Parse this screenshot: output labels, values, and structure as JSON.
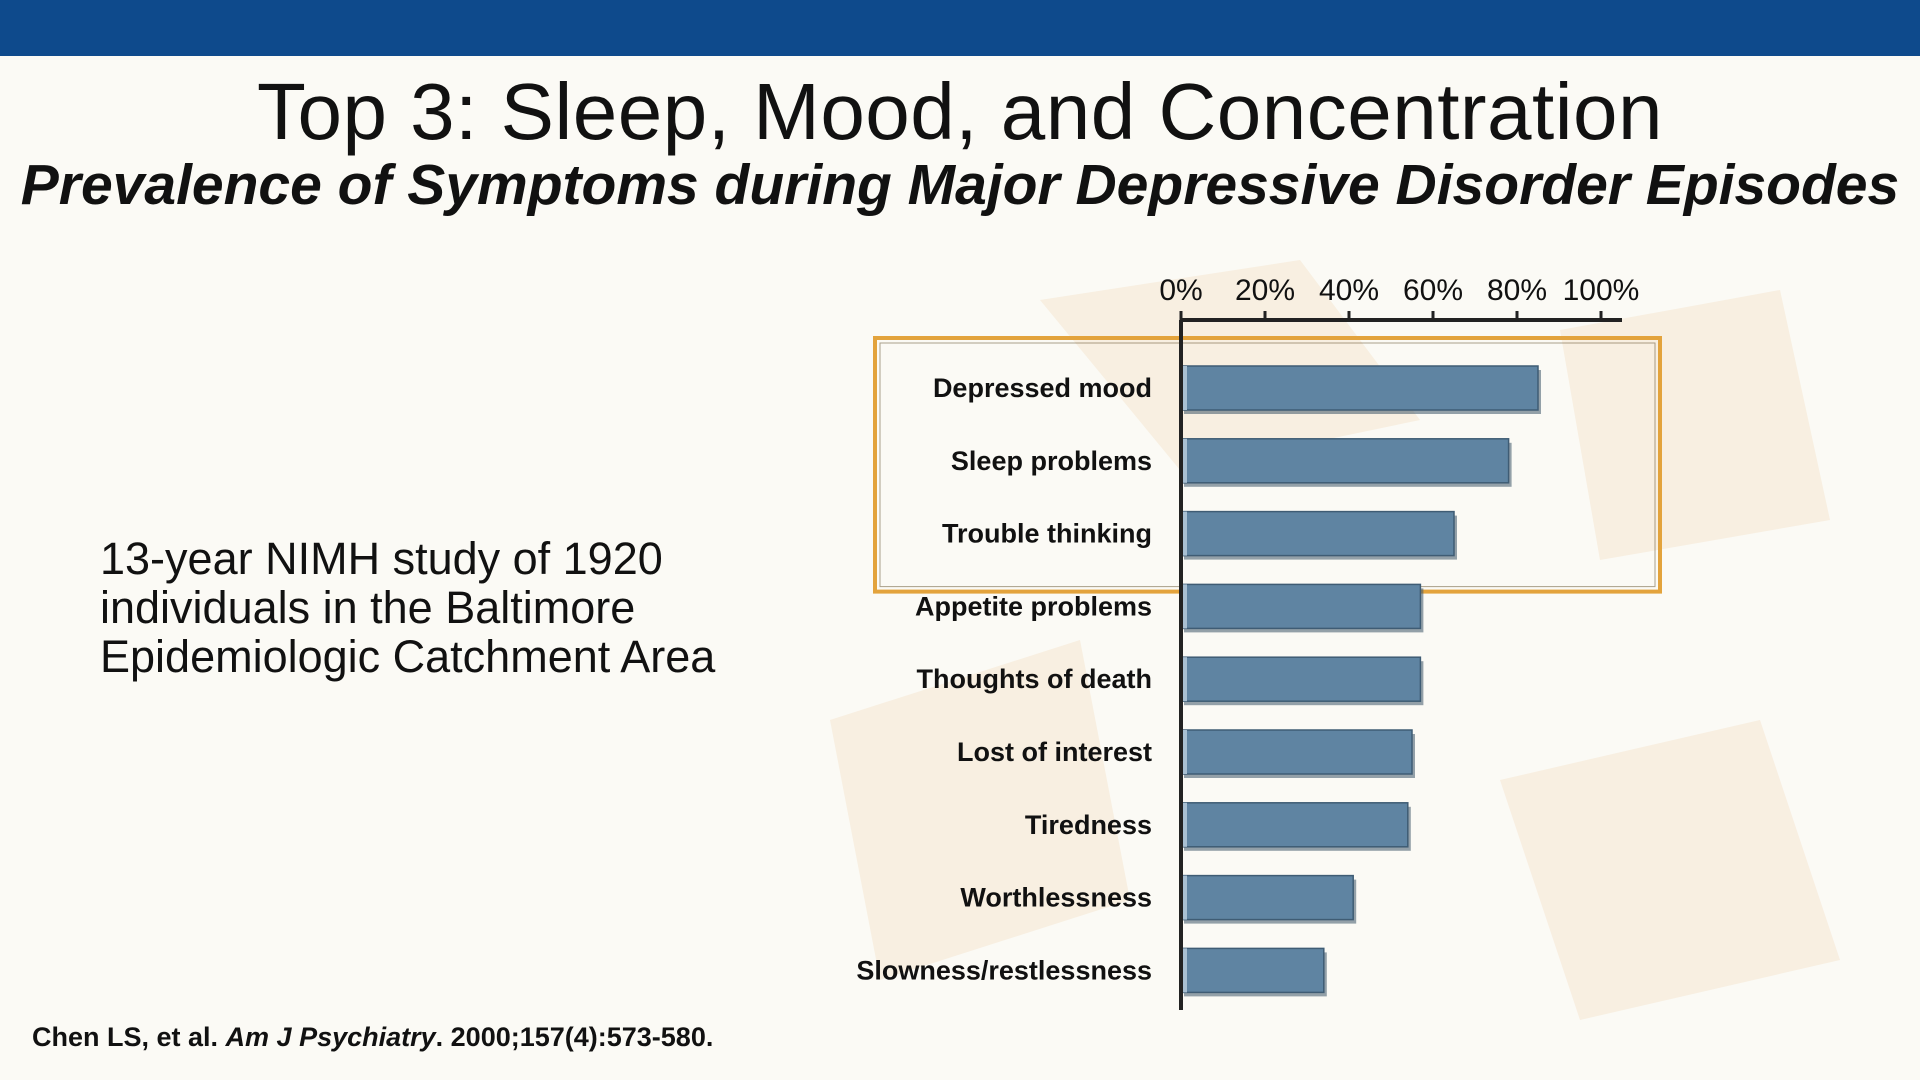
{
  "header": {
    "title": "Top 3: Sleep, Mood, and Concentration",
    "subtitle": "Prevalence of Symptoms during Major Depressive Disorder Episodes"
  },
  "study_note": {
    "lines": [
      "13-year NIMH study of 1920",
      "individuals in the Baltimore",
      "Epidemiologic Catchment Area"
    ]
  },
  "citation": {
    "authors": "Chen LS, et al. ",
    "journal": "Am J Psychiatry",
    "details": ". 2000;157(4):573-580."
  },
  "colors": {
    "topbar": "#0e4a8c",
    "bar_fill": "#5f84a2",
    "highlight_box": "#e3a33c",
    "axis": "#222222"
  },
  "chart_data": {
    "type": "bar",
    "orientation": "horizontal",
    "categories": [
      "Depressed mood",
      "Sleep problems",
      "Trouble thinking",
      "Appetite problems",
      "Thoughts of death",
      "Lost of interest",
      "Tiredness",
      "Worthlessness",
      "Slowness/restlessness"
    ],
    "values": [
      85,
      78,
      65,
      57,
      57,
      55,
      54,
      41,
      34
    ],
    "xlim": [
      0,
      105
    ],
    "ticks": [
      0,
      20,
      40,
      60,
      80,
      100
    ],
    "tick_labels": [
      "0%",
      "20%",
      "40%",
      "60%",
      "80%",
      "100%"
    ],
    "axis_position": "top",
    "grid": false,
    "highlighted_categories": [
      "Depressed mood",
      "Sleep problems",
      "Trouble thinking"
    ]
  }
}
